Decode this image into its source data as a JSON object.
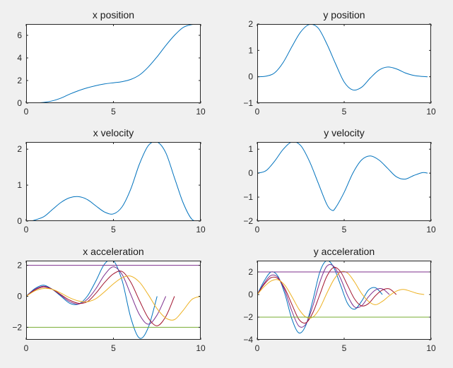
{
  "chart_data": [
    {
      "type": "line",
      "title": "x position",
      "xlim": [
        0,
        10
      ],
      "ylim": [
        0,
        7
      ],
      "xticks": [
        0,
        5,
        10
      ],
      "yticks": [
        0,
        2,
        4,
        6
      ],
      "grid": false,
      "series": [
        {
          "color": "#0072BD",
          "x": [
            0,
            0.5,
            1,
            1.5,
            2,
            2.5,
            3,
            3.5,
            4,
            4.5,
            5,
            5.5,
            6,
            6.5,
            7,
            7.5,
            8,
            8.5,
            9,
            9.5,
            10
          ],
          "y": [
            0,
            0.01,
            0.06,
            0.2,
            0.45,
            0.8,
            1.1,
            1.35,
            1.55,
            1.7,
            1.8,
            1.9,
            2.1,
            2.5,
            3.2,
            4.1,
            5.1,
            6.0,
            6.7,
            6.95,
            7.0
          ]
        }
      ]
    },
    {
      "type": "line",
      "title": "y position",
      "xlim": [
        0,
        10
      ],
      "ylim": [
        -1,
        2
      ],
      "xticks": [
        0,
        5,
        10
      ],
      "yticks": [
        -1,
        0,
        1,
        2
      ],
      "grid": false,
      "series": [
        {
          "color": "#0072BD",
          "x": [
            0,
            0.5,
            1,
            1.5,
            2,
            2.5,
            3,
            3.5,
            4,
            4.5,
            5,
            5.5,
            6,
            6.5,
            7,
            7.5,
            8,
            8.5,
            9,
            9.5,
            9.8
          ],
          "y": [
            0,
            0.02,
            0.15,
            0.55,
            1.15,
            1.7,
            1.98,
            1.85,
            1.25,
            0.5,
            -0.2,
            -0.5,
            -0.4,
            -0.05,
            0.25,
            0.37,
            0.3,
            0.15,
            0.05,
            0.01,
            0.0
          ]
        }
      ]
    },
    {
      "type": "line",
      "title": "x velocity",
      "xlim": [
        0,
        10
      ],
      "ylim": [
        0,
        2.2
      ],
      "xticks": [
        0,
        5,
        10
      ],
      "yticks": [
        0,
        1,
        2
      ],
      "grid": false,
      "series": [
        {
          "color": "#0072BD",
          "x": [
            0.3,
            1,
            1.5,
            2,
            2.5,
            3,
            3.5,
            4,
            4.5,
            5,
            5.5,
            6,
            6.5,
            7,
            7.5,
            8,
            8.5,
            9,
            9.5,
            10
          ],
          "y": [
            0,
            0.12,
            0.32,
            0.52,
            0.65,
            0.68,
            0.6,
            0.42,
            0.25,
            0.2,
            0.4,
            0.9,
            1.6,
            2.1,
            2.2,
            1.9,
            1.2,
            0.5,
            0.05,
            0
          ]
        }
      ]
    },
    {
      "type": "line",
      "title": "y velocity",
      "xlim": [
        0,
        10
      ],
      "ylim": [
        -2,
        1.3
      ],
      "xticks": [
        0,
        5,
        10
      ],
      "yticks": [
        -2,
        -1,
        0,
        1
      ],
      "grid": false,
      "series": [
        {
          "color": "#0072BD",
          "x": [
            0,
            0.5,
            1,
            1.5,
            2,
            2.5,
            3,
            3.5,
            4,
            4.3,
            4.5,
            5,
            5.5,
            6,
            6.5,
            7,
            7.5,
            8,
            8.5,
            9,
            9.5,
            9.8
          ],
          "y": [
            0,
            0.1,
            0.5,
            1.0,
            1.3,
            1.15,
            0.5,
            -0.4,
            -1.3,
            -1.55,
            -1.45,
            -0.8,
            0.0,
            0.55,
            0.72,
            0.55,
            0.2,
            -0.15,
            -0.25,
            -0.1,
            0.02,
            0.0
          ]
        }
      ]
    },
    {
      "type": "line",
      "title": "x acceleration",
      "xlim": [
        0,
        10
      ],
      "ylim": [
        -2.8,
        2.3
      ],
      "xticks": [
        0,
        5,
        10
      ],
      "yticks": [
        -2,
        0,
        2
      ],
      "grid": false,
      "series": [
        {
          "color": "#0072BD",
          "x": [
            0,
            0.5,
            1,
            1.5,
            2,
            2.5,
            3,
            3.5,
            4,
            4.5,
            5,
            5.5,
            6,
            6.5,
            7,
            7.5
          ],
          "y": [
            0,
            0.5,
            0.72,
            0.45,
            0.0,
            -0.45,
            -0.5,
            0.0,
            1.0,
            2.1,
            2.3,
            1.0,
            -1.4,
            -2.7,
            -2.0,
            0.0
          ]
        },
        {
          "color": "#7E2F8E",
          "x": [
            0,
            0.5,
            1,
            1.5,
            2,
            2.5,
            3,
            3.5,
            4,
            4.5,
            5,
            5.5,
            6,
            6.5,
            7,
            7.5,
            8
          ],
          "y": [
            0,
            0.45,
            0.65,
            0.45,
            0.05,
            -0.35,
            -0.5,
            -0.2,
            0.5,
            1.4,
            1.9,
            1.4,
            0.1,
            -1.2,
            -1.8,
            -1.2,
            0.0
          ]
        },
        {
          "color": "#A2142F",
          "x": [
            0,
            0.5,
            1,
            1.5,
            2,
            2.5,
            3,
            3.5,
            4,
            4.5,
            5,
            5.5,
            6,
            6.5,
            7,
            7.5,
            8,
            8.5
          ],
          "y": [
            0,
            0.4,
            0.6,
            0.45,
            0.1,
            -0.25,
            -0.45,
            -0.35,
            0.2,
            0.9,
            1.45,
            1.6,
            0.9,
            -0.3,
            -1.4,
            -1.9,
            -1.3,
            0.0
          ]
        },
        {
          "color": "#EDB120",
          "x": [
            0,
            0.5,
            1,
            1.5,
            2,
            2.5,
            3,
            3.5,
            4,
            4.5,
            5,
            5.5,
            6,
            6.5,
            7,
            7.5,
            8,
            8.5,
            9,
            9.5,
            10
          ],
          "y": [
            0,
            0.35,
            0.5,
            0.45,
            0.2,
            -0.1,
            -0.3,
            -0.35,
            -0.15,
            0.3,
            0.8,
            1.2,
            1.3,
            0.9,
            0.1,
            -0.8,
            -1.4,
            -1.5,
            -0.9,
            -0.2,
            0.0
          ]
        },
        {
          "color": "#7E2F8E",
          "x": [
            0,
            10
          ],
          "y": [
            2,
            2
          ]
        },
        {
          "color": "#77AC30",
          "x": [
            0,
            10
          ],
          "y": [
            -2,
            -2
          ]
        }
      ]
    },
    {
      "type": "line",
      "title": "y acceleration",
      "xlim": [
        0,
        10
      ],
      "ylim": [
        -4,
        3
      ],
      "xticks": [
        0,
        5,
        10
      ],
      "yticks": [
        -4,
        -2,
        0,
        2
      ],
      "grid": false,
      "series": [
        {
          "color": "#0072BD",
          "x": [
            0,
            0.4,
            0.8,
            1.2,
            1.6,
            2,
            2.4,
            2.8,
            3.2,
            3.6,
            4,
            4.4,
            4.8,
            5.2,
            5.6,
            6,
            6.4,
            6.8,
            7.2
          ],
          "y": [
            0,
            1.2,
            2.0,
            1.6,
            0.0,
            -2.2,
            -3.4,
            -2.7,
            -0.5,
            2.0,
            3.0,
            2.4,
            0.8,
            -0.8,
            -1.3,
            -0.6,
            0.4,
            0.6,
            0.0
          ]
        },
        {
          "color": "#7E2F8E",
          "x": [
            0,
            0.4,
            0.8,
            1.2,
            1.6,
            2,
            2.4,
            2.8,
            3.2,
            3.6,
            4,
            4.4,
            4.8,
            5.2,
            5.6,
            6,
            6.4,
            6.8,
            7.2,
            7.6
          ],
          "y": [
            0,
            1.0,
            1.7,
            1.5,
            0.3,
            -1.5,
            -2.8,
            -2.6,
            -1.0,
            1.1,
            2.5,
            2.5,
            1.4,
            -0.1,
            -1.1,
            -1.0,
            -0.2,
            0.4,
            0.5,
            0.0
          ]
        },
        {
          "color": "#A2142F",
          "x": [
            0,
            0.4,
            0.8,
            1.2,
            1.6,
            2,
            2.4,
            2.8,
            3.2,
            3.6,
            4,
            4.4,
            4.8,
            5.2,
            5.6,
            6,
            6.4,
            6.8,
            7.2,
            7.6,
            8
          ],
          "y": [
            0,
            0.9,
            1.5,
            1.4,
            0.5,
            -0.9,
            -2.2,
            -2.5,
            -1.6,
            0.0,
            1.6,
            2.4,
            2.0,
            0.8,
            -0.4,
            -1.0,
            -0.8,
            -0.1,
            0.4,
            0.5,
            0.0
          ]
        },
        {
          "color": "#EDB120",
          "x": [
            0,
            0.4,
            0.8,
            1.2,
            1.6,
            2,
            2.4,
            2.8,
            3.2,
            3.6,
            4,
            4.4,
            4.8,
            5.2,
            5.6,
            6,
            6.4,
            6.8,
            7.2,
            7.6,
            8,
            8.4,
            8.8,
            9.2,
            9.6
          ],
          "y": [
            0,
            0.7,
            1.2,
            1.3,
            0.8,
            -0.2,
            -1.3,
            -2.0,
            -2.0,
            -1.2,
            0.1,
            1.3,
            2.0,
            1.9,
            1.1,
            0.1,
            -0.6,
            -0.9,
            -0.6,
            -0.1,
            0.3,
            0.45,
            0.3,
            0.1,
            0.0
          ]
        },
        {
          "color": "#7E2F8E",
          "x": [
            0,
            10
          ],
          "y": [
            2,
            2
          ]
        },
        {
          "color": "#77AC30",
          "x": [
            0,
            10
          ],
          "y": [
            -2,
            -2
          ]
        }
      ]
    }
  ]
}
